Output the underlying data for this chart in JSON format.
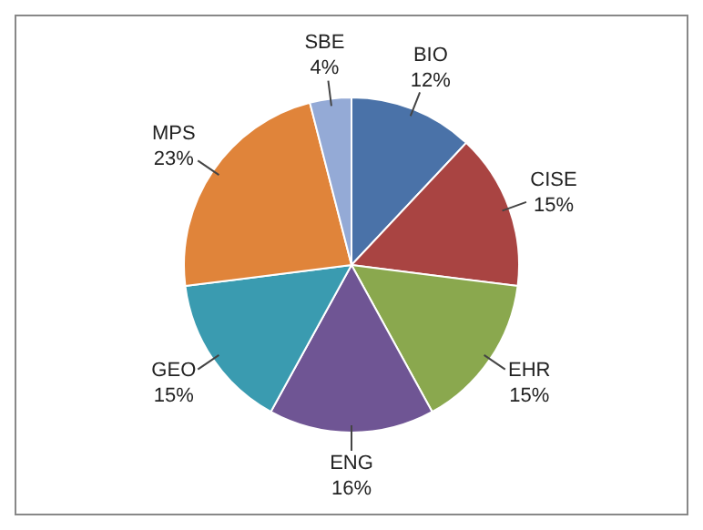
{
  "chart_data": {
    "type": "pie",
    "categories": [
      "BIO",
      "CISE",
      "EHR",
      "ENG",
      "GEO",
      "MPS",
      "SBE"
    ],
    "values": [
      12,
      15,
      15,
      16,
      15,
      23,
      4
    ],
    "value_labels": [
      "12%",
      "15%",
      "15%",
      "16%",
      "15%",
      "23%",
      "4%"
    ],
    "colors": [
      "#4a72a8",
      "#a94442",
      "#8aa84e",
      "#6f5594",
      "#3a9bb0",
      "#e0843a",
      "#94aad6"
    ],
    "legend": false
  }
}
